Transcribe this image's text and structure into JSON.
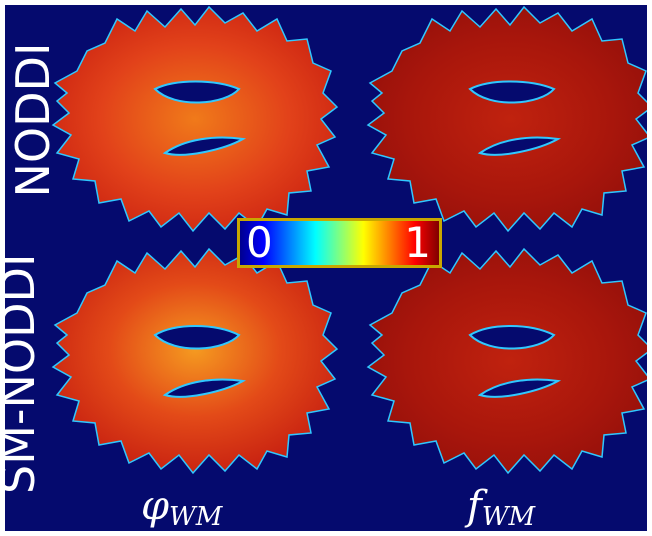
{
  "rows": [
    {
      "label": "NODDI"
    },
    {
      "label": "SM-NODDI"
    }
  ],
  "columns": [
    {
      "symbol": "φ",
      "subscript": "WM"
    },
    {
      "symbol": "f",
      "subscript": "WM"
    }
  ],
  "colorbar": {
    "min_label": "0",
    "max_label": "1",
    "colormap": "jet"
  },
  "colors": {
    "background": "#050a6e",
    "colorbar_border": "#c8a800",
    "phi_fill": "#e0401a",
    "f_fill": "#a8160e",
    "ventricle": "#050a6e",
    "edge": "#30c8ff"
  }
}
